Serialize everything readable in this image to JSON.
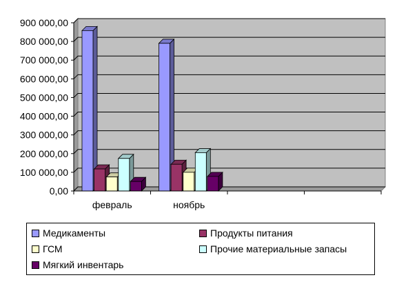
{
  "chart_data": {
    "type": "bar",
    "categories": [
      "февраль",
      "ноябрь",
      "",
      ""
    ],
    "series": [
      {
        "name": "Медикаменты",
        "color": "#9999ff",
        "values": [
          858000,
          790000,
          null,
          null
        ]
      },
      {
        "name": "Продукты питания",
        "color": "#993366",
        "values": [
          118000,
          143000,
          null,
          null
        ]
      },
      {
        "name": "ГСМ",
        "color": "#ffffcc",
        "values": [
          75000,
          100000,
          null,
          null
        ]
      },
      {
        "name": "Прочие материальные запасы",
        "color": "#ccffff",
        "values": [
          174000,
          205000,
          null,
          null
        ]
      },
      {
        "name": "Мягкий инвентарь",
        "color": "#660066",
        "values": [
          51000,
          78000,
          null,
          null
        ]
      }
    ],
    "yticks": [
      "0,00",
      "100 000,00",
      "200 000,00",
      "300 000,00",
      "400 000,00",
      "500 000,00",
      "600 000,00",
      "700 000,00",
      "800 000,00",
      "900 000,00"
    ],
    "ylim": [
      0,
      900000
    ],
    "grid": true,
    "legend_position": "bottom",
    "plot_background": "#c0c0c0"
  }
}
